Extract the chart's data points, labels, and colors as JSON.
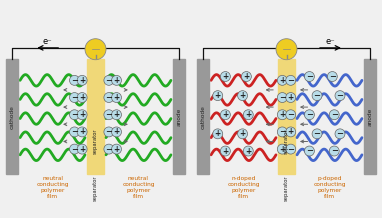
{
  "bg_color": "#f0f0f0",
  "gray_electrode": "#999999",
  "separator_color": "#f0d878",
  "green_polymer": "#22aa22",
  "red_polymer": "#cc2222",
  "blue_polymer": "#4466cc",
  "ion_fill": "#b8dce8",
  "ion_edge": "#666666",
  "text_color": "#222222",
  "orange_text": "#cc6600",
  "bulb_yellow": "#eecc22",
  "bulb_gray": "#bbbbbb",
  "wire_color": "#111111",
  "arrow_ion_color": "#555555",
  "cathode_label": "cathode",
  "anode_label": "anode",
  "electron_label": "e⁻"
}
